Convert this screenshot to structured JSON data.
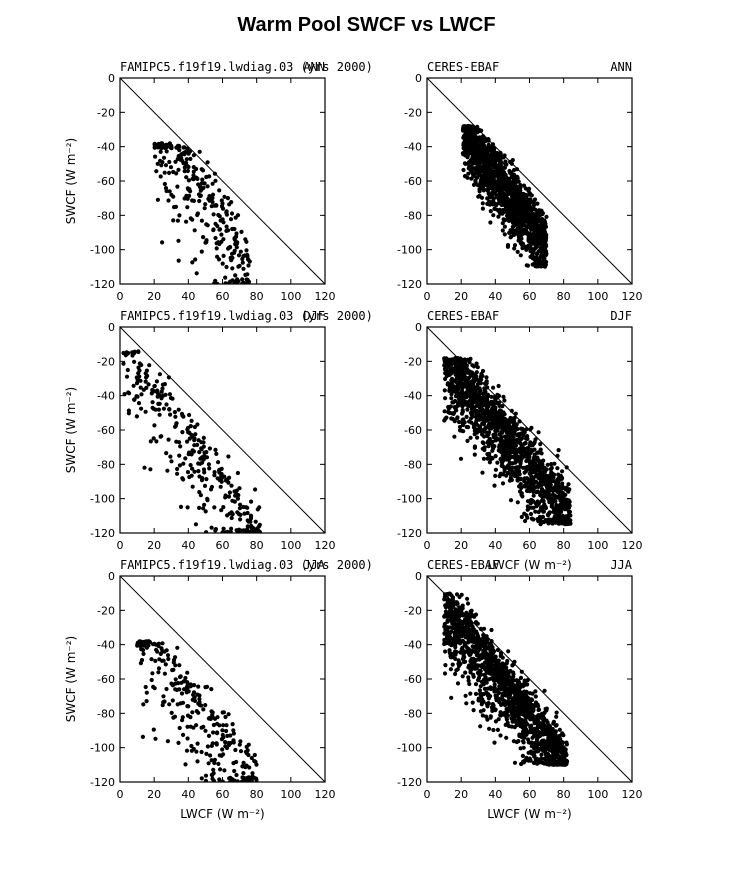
{
  "title": "Warm Pool SWCF vs LWCF",
  "colors": {
    "marker": "#000000",
    "axis": "#000000",
    "background": "#ffffff"
  },
  "chart_data": [
    {
      "type": "scatter",
      "left_title": "FAMIPC5.f19f19.lwdiag.03 (yrs 2000)",
      "right_title": "ANN",
      "xlabel": "",
      "ylabel": "SWCF (W m⁻²)",
      "xlim": [
        0,
        120
      ],
      "ylim": [
        -120,
        0
      ],
      "xticks": [
        0,
        20,
        40,
        60,
        80,
        100,
        120
      ],
      "yticks": [
        0,
        -20,
        -40,
        -60,
        -80,
        -100,
        -120
      ],
      "reference_line": "y = -x",
      "grid": false,
      "cloud": {
        "n": 300,
        "y_intercept": 7,
        "slope": -1.55,
        "x_min": 20,
        "x_max": 76,
        "scatter": 10,
        "skew_below": 2.5,
        "y_clip": [
          -120,
          -38
        ]
      }
    },
    {
      "type": "scatter",
      "left_title": "CERES-EBAF",
      "right_title": "ANN",
      "xlabel": "",
      "ylabel": "",
      "xlim": [
        0,
        120
      ],
      "ylim": [
        -120,
        0
      ],
      "xticks": [
        0,
        20,
        40,
        60,
        80,
        100,
        120
      ],
      "yticks": [
        0,
        -20,
        -40,
        -60,
        -80,
        -100,
        -120
      ],
      "reference_line": "y = -x",
      "grid": false,
      "cloud": {
        "n": 1500,
        "y_intercept": -2,
        "slope": -1.35,
        "x_min": 21,
        "x_max": 70,
        "scatter": 7,
        "skew_below": 1.6,
        "y_clip": [
          -110,
          -28
        ]
      }
    },
    {
      "type": "scatter",
      "left_title": "FAMIPC5.f19f19.lwdiag.03 (yrs 2000)",
      "right_title": "DJF",
      "xlabel": "",
      "ylabel": "SWCF (W m⁻²)",
      "xlim": [
        0,
        120
      ],
      "ylim": [
        -120,
        0
      ],
      "xticks": [
        0,
        20,
        40,
        60,
        80,
        100,
        120
      ],
      "yticks": [
        0,
        -20,
        -40,
        -60,
        -80,
        -100,
        -120
      ],
      "reference_line": "y = -x",
      "grid": false,
      "cloud": {
        "n": 300,
        "y_intercept": -12,
        "slope": -1.35,
        "x_min": 2,
        "x_max": 82,
        "scatter": 9,
        "skew_below": 2.2,
        "y_clip": [
          -120,
          -14
        ]
      }
    },
    {
      "type": "scatter",
      "left_title": "CERES-EBAF",
      "right_title": "DJF",
      "xlabel": "LWCF (W m⁻²)",
      "ylabel": "",
      "xlim": [
        0,
        120
      ],
      "ylim": [
        -120,
        0
      ],
      "xticks": [
        0,
        20,
        40,
        60,
        80,
        100,
        120
      ],
      "yticks": [
        0,
        -20,
        -40,
        -60,
        -80,
        -100,
        -120
      ],
      "reference_line": "y = -x",
      "grid": false,
      "cloud": {
        "n": 1500,
        "y_intercept": -8,
        "slope": -1.22,
        "x_min": 10,
        "x_max": 84,
        "scatter": 9,
        "skew_below": 1.6,
        "y_clip": [
          -115,
          -18
        ]
      }
    },
    {
      "type": "scatter",
      "left_title": "FAMIPC5.f19f19.lwdiag.03 (yrs 2000)",
      "right_title": "JJA",
      "xlabel": "LWCF (W m⁻²)",
      "ylabel": "SWCF (W m⁻²)",
      "xlim": [
        0,
        120
      ],
      "ylim": [
        -120,
        0
      ],
      "xticks": [
        0,
        20,
        40,
        60,
        80,
        100,
        120
      ],
      "yticks": [
        0,
        -20,
        -40,
        -60,
        -80,
        -100,
        -120
      ],
      "reference_line": "y = -x",
      "grid": false,
      "cloud": {
        "n": 300,
        "y_intercept": -20,
        "slope": -1.25,
        "x_min": 10,
        "x_max": 80,
        "scatter": 9,
        "skew_below": 2.2,
        "y_clip": [
          -120,
          -38
        ]
      }
    },
    {
      "type": "scatter",
      "left_title": "CERES-EBAF",
      "right_title": "JJA",
      "xlabel": "LWCF (W m⁻²)",
      "ylabel": "",
      "xlim": [
        0,
        120
      ],
      "ylim": [
        -120,
        0
      ],
      "xticks": [
        0,
        20,
        40,
        60,
        80,
        100,
        120
      ],
      "yticks": [
        0,
        -20,
        -40,
        -60,
        -80,
        -100,
        -120
      ],
      "reference_line": "y = -x",
      "grid": false,
      "cloud": {
        "n": 1500,
        "y_intercept": -4,
        "slope": -1.3,
        "x_min": 10,
        "x_max": 82,
        "scatter": 8,
        "skew_below": 1.8,
        "y_clip": [
          -110,
          -10
        ]
      }
    }
  ]
}
